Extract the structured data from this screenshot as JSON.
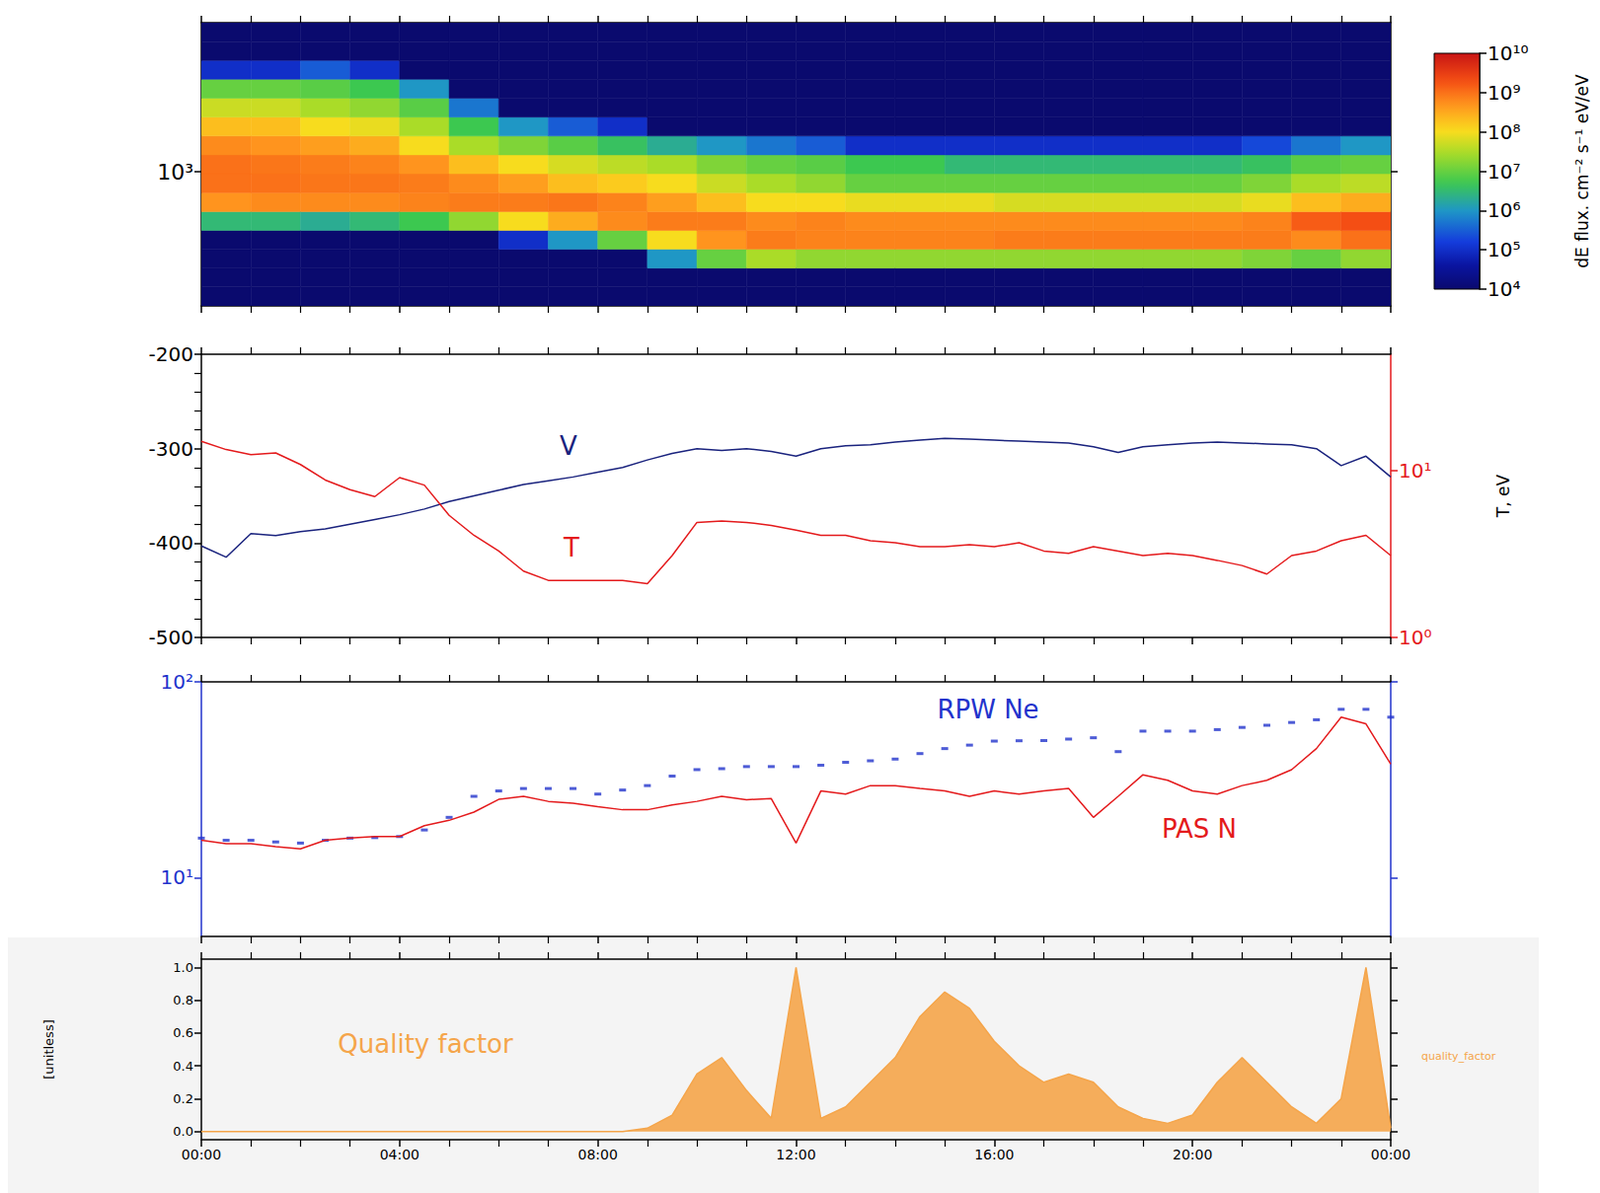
{
  "chart_data": [
    {
      "type": "heatmap",
      "log": "y",
      "tick_labels": "y",
      "xlim": [
        0,
        24
      ],
      "xticks": [
        {
          "value": 0,
          "label": "00:00"
        },
        {
          "value": 4,
          "label": "04:00"
        },
        {
          "value": 8,
          "label": "08:00"
        },
        {
          "value": 12,
          "label": "12:00"
        },
        {
          "value": 16,
          "label": "16:00"
        },
        {
          "value": 20,
          "label": "20:00"
        },
        {
          "value": 24,
          "label": "00:00"
        }
      ],
      "ylim": [
        200,
        6000
      ],
      "yticks": [
        {
          "value": 1000,
          "label": "10³"
        }
      ],
      "time_bins": [
        0,
        1,
        2,
        3,
        4,
        5,
        6,
        7,
        8,
        9,
        10,
        11,
        12,
        13,
        14,
        15,
        16,
        17,
        18,
        19,
        20,
        21,
        22,
        23,
        24
      ],
      "energy_bins": [
        200,
        251,
        315,
        395,
        495,
        621,
        779,
        978,
        1227,
        1539,
        1931,
        2423,
        3040,
        3814,
        4782,
        6000
      ],
      "cells": [
        [
          10000.0,
          10000.0,
          10000.0,
          10000.0,
          3000000.0,
          500000000.0,
          1000000000.0,
          1000000000.0,
          600000000.0,
          200000000.0,
          50000000.0,
          10000000.0,
          100000.0,
          10000.0,
          10000.0
        ],
        [
          10000.0,
          10000.0,
          10000.0,
          10000.0,
          3000000.0,
          600000000.0,
          1000000000.0,
          900000000.0,
          500000000.0,
          200000000.0,
          50000000.0,
          10000000.0,
          100000.0,
          10000.0,
          10000.0
        ],
        [
          10000.0,
          10000.0,
          10000.0,
          10000.0,
          2000000.0,
          600000000.0,
          900000000.0,
          800000000.0,
          400000000.0,
          100000000.0,
          30000000.0,
          8000000.0,
          300000.0,
          10000.0,
          10000.0
        ],
        [
          10000.0,
          10000.0,
          10000.0,
          10000.0,
          3000000.0,
          600000000.0,
          900000000.0,
          700000000.0,
          300000000.0,
          80000000.0,
          20000000.0,
          5000000.0,
          100000.0,
          10000.0,
          10000.0
        ],
        [
          10000.0,
          10000.0,
          10000.0,
          10000.0,
          5000000.0,
          700000000.0,
          800000000.0,
          500000000.0,
          100000000.0,
          30000000.0,
          8000000.0,
          1000000.0,
          10000.0,
          10000.0,
          10000.0
        ],
        [
          10000.0,
          10000.0,
          10000.0,
          10000.0,
          20000000.0,
          800000000.0,
          600000000.0,
          200000000.0,
          30000000.0,
          5000000.0,
          500000.0,
          10000.0,
          10000.0,
          10000.0,
          10000.0
        ],
        [
          10000.0,
          10000.0,
          10000.0,
          100000.0,
          100000000.0,
          800000000.0,
          400000000.0,
          100000000.0,
          15000000.0,
          1000000.0,
          10000.0,
          10000.0,
          10000.0,
          10000.0,
          10000.0
        ],
        [
          10000.0,
          10000.0,
          10000.0,
          1000000.0,
          300000000.0,
          900000000.0,
          200000000.0,
          60000000.0,
          8000000.0,
          300000.0,
          10000.0,
          10000.0,
          10000.0,
          10000.0,
          10000.0
        ],
        [
          10000.0,
          10000.0,
          10000.0,
          10000000.0,
          600000000.0,
          700000000.0,
          150000000.0,
          40000000.0,
          4000000.0,
          100000.0,
          10000.0,
          10000.0,
          10000.0,
          10000.0,
          10000.0
        ],
        [
          10000.0,
          10000.0,
          1000000.0,
          100000000.0,
          800000000.0,
          400000000.0,
          100000000.0,
          30000000.0,
          2000000.0,
          10000.0,
          10000.0,
          10000.0,
          10000.0,
          10000.0,
          10000.0
        ],
        [
          10000.0,
          10000.0,
          10000000.0,
          500000000.0,
          800000000.0,
          200000000.0,
          50000000.0,
          15000000.0,
          1000000.0,
          10000.0,
          10000.0,
          10000.0,
          10000.0,
          10000.0,
          10000.0
        ],
        [
          10000.0,
          10000.0,
          30000000.0,
          800000000.0,
          600000000.0,
          100000000.0,
          30000000.0,
          10000000.0,
          500000.0,
          10000.0,
          10000.0,
          10000.0,
          10000.0,
          10000.0,
          10000.0
        ],
        [
          10000.0,
          10000.0,
          20000000.0,
          700000000.0,
          700000000.0,
          100000000.0,
          20000000.0,
          8000000.0,
          300000.0,
          10000.0,
          10000.0,
          10000.0,
          10000.0,
          10000.0,
          10000.0
        ],
        [
          10000.0,
          10000.0,
          20000000.0,
          700000000.0,
          600000000.0,
          80000000.0,
          10000000.0,
          5000000.0,
          100000.0,
          10000.0,
          10000.0,
          10000.0,
          10000.0,
          10000.0,
          10000.0
        ],
        [
          10000.0,
          10000.0,
          20000000.0,
          700000000.0,
          600000000.0,
          80000000.0,
          10000000.0,
          5000000.0,
          100000.0,
          10000.0,
          10000.0,
          10000.0,
          10000.0,
          10000.0,
          10000.0
        ],
        [
          10000.0,
          10000.0,
          20000000.0,
          700000000.0,
          600000000.0,
          80000000.0,
          10000000.0,
          3000000.0,
          100000.0,
          10000.0,
          10000.0,
          10000.0,
          10000.0,
          10000.0,
          10000.0
        ],
        [
          10000.0,
          10000.0,
          20000000.0,
          800000000.0,
          600000000.0,
          60000000.0,
          10000000.0,
          3000000.0,
          100000.0,
          10000.0,
          10000.0,
          10000.0,
          10000.0,
          10000.0,
          10000.0
        ],
        [
          10000.0,
          10000.0,
          20000000.0,
          800000000.0,
          600000000.0,
          60000000.0,
          10000000.0,
          3000000.0,
          100000.0,
          10000.0,
          10000.0,
          10000.0,
          10000.0,
          10000.0,
          10000.0
        ],
        [
          10000.0,
          10000.0,
          20000000.0,
          800000000.0,
          600000000.0,
          60000000.0,
          10000000.0,
          3000000.0,
          100000.0,
          10000.0,
          10000.0,
          10000.0,
          10000.0,
          10000.0,
          10000.0
        ],
        [
          10000.0,
          10000.0,
          20000000.0,
          800000000.0,
          600000000.0,
          60000000.0,
          10000000.0,
          3000000.0,
          100000.0,
          10000.0,
          10000.0,
          10000.0,
          10000.0,
          10000.0,
          10000.0
        ],
        [
          10000.0,
          10000.0,
          20000000.0,
          800000000.0,
          600000000.0,
          60000000.0,
          10000000.0,
          3000000.0,
          100000.0,
          10000.0,
          10000.0,
          10000.0,
          10000.0,
          10000.0,
          10000.0
        ],
        [
          10000.0,
          10000.0,
          15000000.0,
          800000000.0,
          700000000.0,
          80000000.0,
          15000000.0,
          4000000.0,
          200000.0,
          10000.0,
          10000.0,
          10000.0,
          10000.0,
          10000.0,
          10000.0
        ],
        [
          10000.0,
          10000.0,
          10000000.0,
          600000000.0,
          1500000000.0,
          200000000.0,
          30000000.0,
          8000000.0,
          500000.0,
          10000.0,
          10000.0,
          10000.0,
          10000.0,
          10000.0,
          10000.0
        ],
        [
          10000.0,
          10000.0,
          20000000.0,
          1000000000.0,
          2000000000.0,
          300000000.0,
          40000000.0,
          10000000.0,
          1000000.0,
          10000.0,
          10000.0,
          10000.0,
          10000.0,
          10000.0,
          10000.0
        ]
      ],
      "colorbar": {
        "title": "dE flux. cm⁻² s⁻¹ eV/eV",
        "range": [
          10000,
          10000000000
        ],
        "ticks": [
          {
            "value": 10000,
            "label": "10⁴"
          },
          {
            "value": 100000,
            "label": "10⁵"
          },
          {
            "value": 1000000,
            "label": "10⁶"
          },
          {
            "value": 10000000,
            "label": "10⁷"
          },
          {
            "value": 100000000,
            "label": "10⁸"
          },
          {
            "value": 1000000000,
            "label": "10⁹"
          },
          {
            "value": 10000000000,
            "label": "10¹⁰"
          }
        ]
      }
    },
    {
      "type": "line",
      "log": "y2",
      "tick_labels": "y",
      "xlim": [
        0,
        24
      ],
      "xticks": [
        {
          "value": 0,
          "label": "00:00"
        },
        {
          "value": 4,
          "label": "04:00"
        },
        {
          "value": 8,
          "label": "08:00"
        },
        {
          "value": 12,
          "label": "12:00"
        },
        {
          "value": 16,
          "label": "16:00"
        },
        {
          "value": 20,
          "label": "20:00"
        },
        {
          "value": 24,
          "label": "00:00"
        }
      ],
      "ylim": [
        -500,
        -200
      ],
      "yticks": [
        -500,
        -400,
        -300,
        -200
      ],
      "y2lim": [
        1,
        50
      ],
      "y2ticks": [
        {
          "value": 1,
          "label": "10⁰"
        },
        {
          "value": 10,
          "label": "10¹"
        }
      ],
      "y2label": "T, eV",
      "x": [
        0,
        0.5,
        1,
        1.5,
        2,
        2.5,
        3,
        3.5,
        4,
        4.5,
        5,
        5.5,
        6,
        6.5,
        7,
        7.5,
        8,
        8.5,
        9,
        9.5,
        10,
        10.5,
        11,
        11.5,
        12,
        12.5,
        13,
        13.5,
        14,
        14.5,
        15,
        15.5,
        16,
        16.5,
        17,
        17.5,
        18,
        18.5,
        19,
        19.5,
        20,
        20.5,
        21,
        21.5,
        22,
        22.5,
        23,
        23.5,
        24
      ],
      "series": [
        {
          "name": "V",
          "color": "#1a237e",
          "values": [
            -403,
            -415,
            -390,
            -392,
            -388,
            -385,
            -380,
            -375,
            -370,
            -364,
            -356,
            -350,
            -344,
            -338,
            -334,
            -330,
            -325,
            -320,
            -312,
            -305,
            -300,
            -302,
            -300,
            -303,
            -308,
            -300,
            -297,
            -296,
            -293,
            -291,
            -289,
            -290,
            -291,
            -292,
            -293,
            -294,
            -298,
            -304,
            -298,
            -296,
            -294,
            -293,
            -294,
            -295,
            -296,
            -300,
            -318,
            -308,
            -330
          ]
        },
        {
          "name": "T",
          "color": "#e41a1c",
          "axis": "y2",
          "values": [
            15,
            13.4,
            12.5,
            12.8,
            10.9,
            8.8,
            7.7,
            7.0,
            9.1,
            8.2,
            5.4,
            4.1,
            3.3,
            2.5,
            2.2,
            2.2,
            2.2,
            2.2,
            2.1,
            3.1,
            4.9,
            5.0,
            4.9,
            4.7,
            4.4,
            4.1,
            4.1,
            3.8,
            3.7,
            3.5,
            3.5,
            3.6,
            3.5,
            3.7,
            3.3,
            3.2,
            3.5,
            3.3,
            3.1,
            3.2,
            3.1,
            2.9,
            2.7,
            2.4,
            3.1,
            3.3,
            3.8,
            4.1,
            3.1
          ]
        }
      ]
    },
    {
      "type": "line",
      "log": "y",
      "tick_labels": "y",
      "xlim": [
        0,
        24
      ],
      "xticks": [
        {
          "value": 0,
          "label": "00:00"
        },
        {
          "value": 4,
          "label": "04:00"
        },
        {
          "value": 8,
          "label": "08:00"
        },
        {
          "value": 12,
          "label": "12:00"
        },
        {
          "value": 16,
          "label": "16:00"
        },
        {
          "value": 20,
          "label": "20:00"
        },
        {
          "value": 24,
          "label": "00:00"
        }
      ],
      "ylim": [
        5,
        100
      ],
      "yticks": [
        {
          "value": 10,
          "label": "10¹"
        },
        {
          "value": 100,
          "label": "10²"
        }
      ],
      "x": [
        0,
        0.5,
        1,
        1.5,
        2,
        2.5,
        3,
        3.5,
        4,
        4.5,
        5,
        5.5,
        6,
        6.5,
        7,
        7.5,
        8,
        8.5,
        9,
        9.5,
        10,
        10.5,
        11,
        11.5,
        12,
        12.5,
        13,
        13.5,
        14,
        14.5,
        15,
        15.5,
        16,
        16.5,
        17,
        17.5,
        18,
        18.5,
        19,
        19.5,
        20,
        20.5,
        21,
        21.5,
        22,
        22.5,
        23,
        23.5,
        24
      ],
      "series": [
        {
          "name": "RPW Ne",
          "type": "scatter",
          "marker": "rect",
          "color": "#2233cc",
          "values": [
            15.9,
            15.5,
            15.5,
            15.2,
            15.0,
            15.5,
            15.9,
            16.0,
            16.2,
            17.5,
            20.3,
            26.0,
            27.7,
            28.5,
            28.5,
            28.5,
            26.7,
            28.0,
            29.5,
            33.0,
            35.6,
            36.0,
            36.9,
            36.9,
            36.9,
            37.5,
            38.8,
            39.5,
            40.3,
            43.0,
            45.6,
            47.5,
            49.8,
            50.0,
            50.1,
            51.0,
            51.8,
            44.0,
            56.0,
            56.0,
            56.0,
            57.0,
            58.5,
            60.0,
            62.0,
            64.0,
            72.4,
            72.4,
            66.0
          ]
        },
        {
          "name": "PAS N",
          "type": "line",
          "color": "#e41a1c",
          "values": [
            15.5,
            14.9,
            14.9,
            14.4,
            14.0,
            15.5,
            15.9,
            16.2,
            16.2,
            18.4,
            19.6,
            21.6,
            25.1,
            26.0,
            24.5,
            24.0,
            23.0,
            22.2,
            22.2,
            23.5,
            24.5,
            26.0,
            25.0,
            25.3,
            15,
            27.7,
            26.7,
            29.5,
            29.5,
            28.5,
            27.7,
            26.0,
            27.7,
            26.7,
            27.7,
            28.5,
            20.3,
            26.0,
            33.5,
            31.4,
            27.7,
            26.7,
            29.5,
            31.4,
            35.6,
            45.6,
            66,
            61,
            38
          ]
        }
      ]
    },
    {
      "type": "area",
      "title": "Quality factor",
      "ylabel": "[unitless]",
      "xlim": [
        0,
        24
      ],
      "xticks": [
        {
          "value": 0,
          "label": "00:00"
        },
        {
          "value": 4,
          "label": "04:00"
        },
        {
          "value": 8,
          "label": "08:00"
        },
        {
          "value": 12,
          "label": "12:00"
        },
        {
          "value": 16,
          "label": "16:00"
        },
        {
          "value": 20,
          "label": "20:00"
        },
        {
          "value": 24,
          "label": "00:00"
        }
      ],
      "ylim": [
        -0.05,
        1.05
      ],
      "yticks": [
        {
          "value": 0,
          "label": "0.0"
        },
        0.2,
        0.4,
        0.6,
        0.8,
        {
          "value": 1,
          "label": "1.0"
        }
      ],
      "x": [
        0,
        0.5,
        1,
        1.5,
        2,
        2.5,
        3,
        3.5,
        4,
        4.5,
        5,
        5.5,
        6,
        6.5,
        7,
        7.5,
        8,
        8.5,
        9,
        9.5,
        10,
        10.5,
        11,
        11.5,
        12,
        12.5,
        13,
        13.5,
        14,
        14.5,
        15,
        15.5,
        16,
        16.5,
        17,
        17.5,
        18,
        18.5,
        19,
        19.5,
        20,
        20.5,
        21,
        21.5,
        22,
        22.5,
        23,
        23.5,
        24
      ],
      "series": [
        {
          "name": "quality_factor",
          "color": "#f5a54a",
          "values": [
            0,
            0,
            0,
            0,
            0,
            0,
            0,
            0,
            0,
            0,
            0,
            0,
            0,
            0,
            0,
            0,
            0,
            0,
            0.02,
            0.1,
            0.35,
            0.45,
            0.25,
            0.08,
            1.0,
            0.08,
            0.15,
            0.3,
            0.45,
            0.7,
            0.85,
            0.75,
            0.55,
            0.4,
            0.3,
            0.35,
            0.3,
            0.15,
            0.08,
            0.05,
            0.1,
            0.3,
            0.45,
            0.3,
            0.15,
            0.05,
            0.2,
            1.0,
            0.02
          ]
        }
      ]
    }
  ]
}
